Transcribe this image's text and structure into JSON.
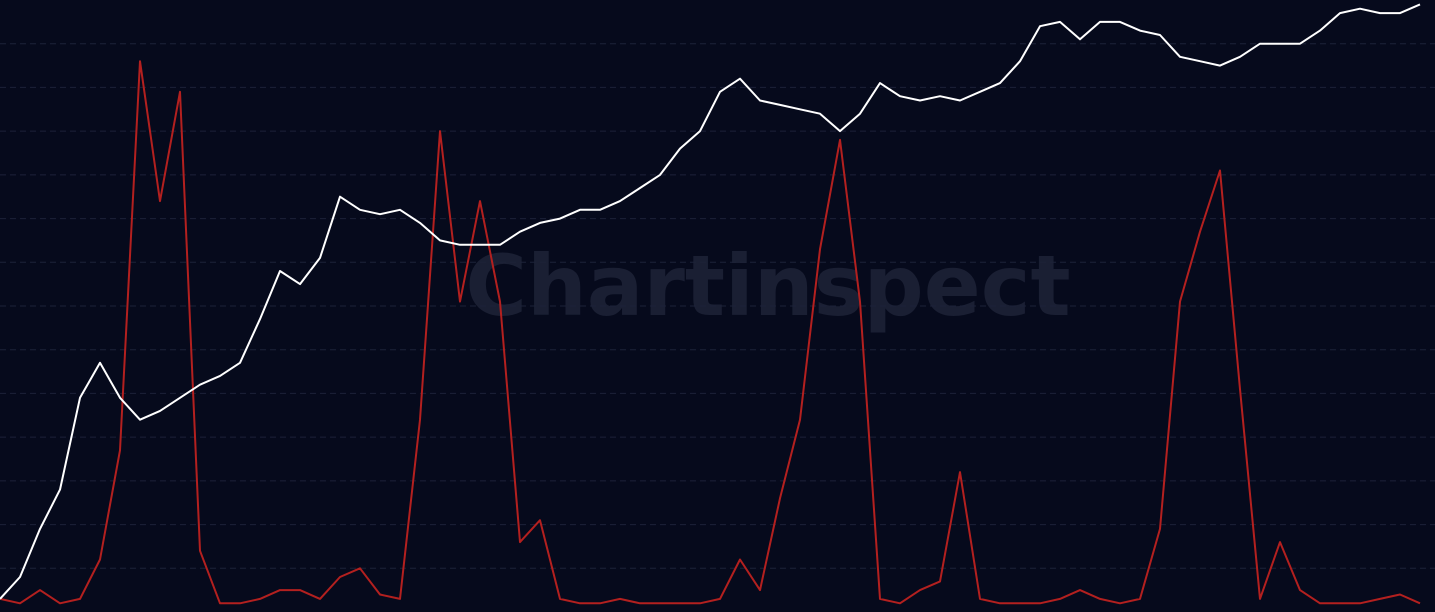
{
  "chart_data": {
    "type": "line",
    "watermark": "Chartinspect",
    "ylim": [
      0,
      14
    ],
    "yticks": [
      1,
      2,
      3,
      4,
      5,
      6,
      7,
      8,
      9,
      10,
      11,
      12,
      13
    ],
    "grid": true,
    "series": [
      {
        "color": "#b3201f",
        "values": [
          0.3,
          0.2,
          0.5,
          0.2,
          0.3,
          1.2,
          3.7,
          12.6,
          9.4,
          11.9,
          1.4,
          0.2,
          0.2,
          0.3,
          0.5,
          0.5,
          0.3,
          0.8,
          1.0,
          0.4,
          0.3,
          4.4,
          11.0,
          7.1,
          9.4,
          7.1,
          1.6,
          2.1,
          0.3,
          0.2,
          0.2,
          0.3,
          0.2,
          0.2,
          0.2,
          0.2,
          0.3,
          1.2,
          0.5,
          2.6,
          4.4,
          8.3,
          10.8,
          7.1,
          0.3,
          0.2,
          0.5,
          0.7,
          3.2,
          0.3,
          0.2,
          0.2,
          0.2,
          0.3,
          0.5,
          0.3,
          0.2,
          0.3,
          1.9,
          7.1,
          8.7,
          10.1,
          5.1,
          0.3,
          1.6,
          0.5,
          0.2,
          0.2,
          0.2,
          0.3,
          0.4,
          0.2
        ]
      },
      {
        "color": "#ffffff",
        "values": [
          0.3,
          0.8,
          1.9,
          2.8,
          4.9,
          5.7,
          4.9,
          4.4,
          4.6,
          4.9,
          5.2,
          5.4,
          5.7,
          6.7,
          7.8,
          7.5,
          8.1,
          9.5,
          9.2,
          9.1,
          9.2,
          8.9,
          8.5,
          8.4,
          8.4,
          8.4,
          8.7,
          8.9,
          9.0,
          9.2,
          9.2,
          9.4,
          9.7,
          10.0,
          10.6,
          11.0,
          11.9,
          12.2,
          11.7,
          11.6,
          11.5,
          11.4,
          11.0,
          11.4,
          12.1,
          11.8,
          11.7,
          11.8,
          11.7,
          11.9,
          12.1,
          12.6,
          13.4,
          13.5,
          13.1,
          13.5,
          13.5,
          13.3,
          13.2,
          12.7,
          12.6,
          12.5,
          12.7,
          13.0,
          13.0,
          13.0,
          13.3,
          13.7,
          13.8,
          13.7,
          13.7,
          13.9
        ]
      }
    ]
  }
}
